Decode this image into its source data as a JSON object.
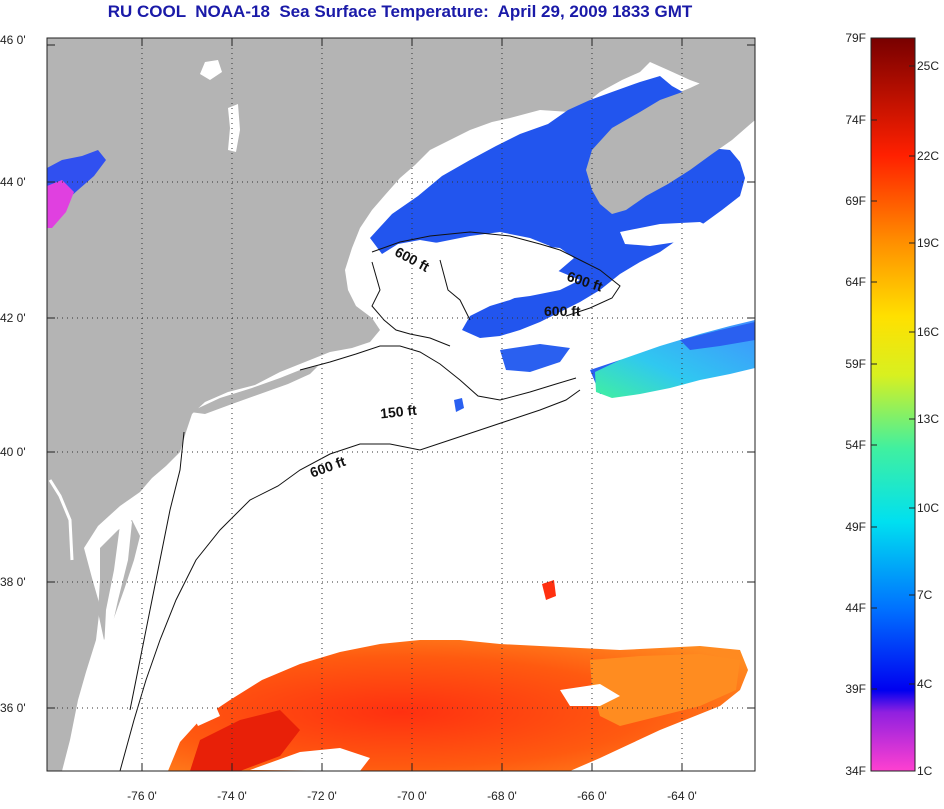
{
  "title": "RU COOL  NOAA-18  Sea Surface Temperature:  April 29, 2009 1833 GMT",
  "lat_labels": [
    "46 0'",
    "44 0'",
    "42 0'",
    "40 0'",
    "38 0'",
    "36 0'"
  ],
  "lon_labels": [
    "-76 0'",
    "-74 0'",
    "-72 0'",
    "-70 0'",
    "-68 0'",
    "-66 0'",
    "-64 0'"
  ],
  "contour_labels": [
    "600 ft",
    "600 ft",
    "600 ft",
    "150 ft",
    "600 ft"
  ],
  "colorbar": {
    "f_labels": [
      "79F",
      "74F",
      "69F",
      "64F",
      "59F",
      "54F",
      "49F",
      "44F",
      "39F",
      "34F"
    ],
    "c_labels": [
      "25C",
      "22C",
      "19C",
      "16C",
      "13C",
      "10C",
      "7C",
      "4C",
      "1C"
    ]
  },
  "colors": {
    "land": "#b4b4b4",
    "ocean": "#ffffff",
    "title": "#1a1aa8",
    "cold": "#2255ee",
    "warm": "#ff5010"
  }
}
